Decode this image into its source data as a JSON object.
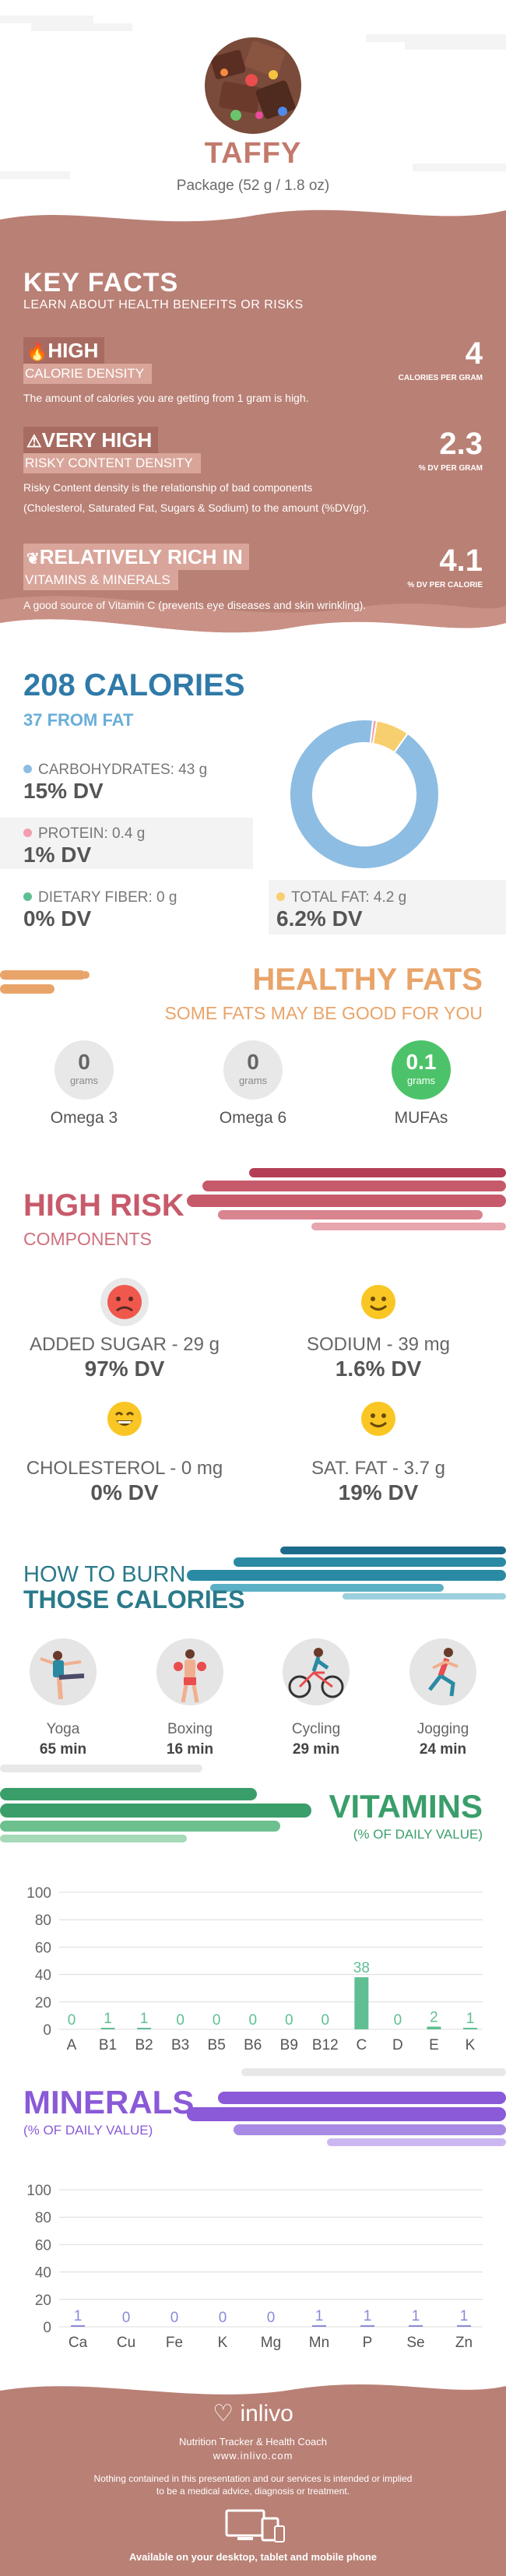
{
  "header": {
    "title": "TAFFY",
    "serving": "Package (52 g / 1.8 oz)"
  },
  "key_facts": {
    "title": "KEY FACTS",
    "subtitle": "LEARN ABOUT HEALTH BENEFITS OR RISKS",
    "facts": [
      {
        "icon": "flame-icon",
        "level": "HIGH",
        "label": "CALORIE DENSITY",
        "value": "4",
        "unit": "CALORIES PER GRAM",
        "description": "The amount of calories you are getting from 1 gram is high."
      },
      {
        "icon": "warning-icon",
        "level": "VERY HIGH",
        "label": "RISKY CONTENT DENSITY",
        "value": "2.3",
        "unit": "% DV PER GRAM",
        "description_line1": "Risky Content density is the relationship of bad components",
        "description_line2": "(Cholesterol, Saturated Fat, Sugars & Sodium) to the amount (%DV/gr)."
      },
      {
        "icon": "leaf-icon",
        "level": "RELATIVELY RICH  IN",
        "label": "VITAMINS & MINERALS",
        "value": "4.1",
        "unit": "% DV PER CALORIE",
        "description": "A good source of Vitamin C (prevents eye diseases and skin wrinkling)."
      }
    ]
  },
  "calories": {
    "title": "208 CALORIES",
    "from_fat": "37 FROM FAT",
    "nutrients": [
      {
        "label": "CARBOHYDRATES: 43 g",
        "dv": "15% DV",
        "color": "#8dbde3"
      },
      {
        "label": "PROTEIN: 0.4 g",
        "dv": "1% DV",
        "color": "#f29db0"
      },
      {
        "label": "DIETARY FIBER: 0 g",
        "dv": "0% DV",
        "color": "#5fbf92"
      },
      {
        "label": "TOTAL FAT: 4.2 g",
        "dv": "6.2% DV",
        "color": "#f7cf6e"
      }
    ],
    "donut": [
      {
        "name": "carbohydrates",
        "fraction": 0.92,
        "color": "#8dbde3"
      },
      {
        "name": "protein",
        "fraction": 0.008,
        "color": "#f29db0"
      },
      {
        "name": "total fat",
        "fraction": 0.072,
        "color": "#f7cf6e"
      }
    ]
  },
  "healthy_fats": {
    "title": "HEALTHY FATS",
    "subtitle": "SOME FATS MAY BE GOOD FOR YOU",
    "items": [
      {
        "name": "Omega 3",
        "value": "0",
        "unit": "grams"
      },
      {
        "name": "Omega 6",
        "value": "0",
        "unit": "grams"
      },
      {
        "name": "MUFAs",
        "value": "0.1",
        "unit": "grams"
      }
    ]
  },
  "high_risk": {
    "title": "HIGH RISK",
    "subtitle": "COMPONENTS",
    "items": [
      {
        "name": "ADDED SUGAR - 29 g",
        "dv": "97% DV",
        "face": "sad"
      },
      {
        "name": "SODIUM - 39 mg",
        "dv": "1.6% DV",
        "face": "smile"
      },
      {
        "name": "CHOLESTEROL - 0 mg",
        "dv": "0% DV",
        "face": "grin"
      },
      {
        "name": "SAT. FAT - 3.7 g",
        "dv": "19% DV",
        "face": "smile"
      }
    ]
  },
  "burn": {
    "title_line1": "HOW TO BURN",
    "title_line2": "THOSE CALORIES",
    "activities": [
      {
        "name": "Yoga",
        "time": "65 min",
        "icon": "yoga-icon"
      },
      {
        "name": "Boxing",
        "time": "16 min",
        "icon": "boxing-icon"
      },
      {
        "name": "Cycling",
        "time": "29 min",
        "icon": "cycling-icon"
      },
      {
        "name": "Jogging",
        "time": "24 min",
        "icon": "jogging-icon"
      }
    ]
  },
  "vitamins": {
    "title": "VITAMINS",
    "subtitle": "(% OF DAILY VALUE)"
  },
  "minerals": {
    "title": "MINERALS",
    "subtitle": "(% OF DAILY VALUE)"
  },
  "chart_data": [
    {
      "type": "bar",
      "categories": [
        "A",
        "B1",
        "B2",
        "B3",
        "B5",
        "B6",
        "B9",
        "B12",
        "C",
        "D",
        "E",
        "K"
      ],
      "values": [
        0,
        1,
        1,
        0,
        0,
        0,
        0,
        0,
        38,
        0,
        2,
        1
      ],
      "ylim": [
        0,
        100
      ],
      "yticks": [
        0,
        20,
        40,
        60,
        80,
        100
      ],
      "color": "#5fbf92",
      "grid": true
    },
    {
      "type": "bar",
      "categories": [
        "Ca",
        "Cu",
        "Fe",
        "K",
        "Mg",
        "Mn",
        "P",
        "Se",
        "Zn"
      ],
      "values": [
        1,
        0,
        0,
        0,
        0,
        1,
        1,
        1,
        1
      ],
      "ylim": [
        0,
        100
      ],
      "yticks": [
        0,
        20,
        40,
        60,
        80,
        100
      ],
      "color": "#8a8ad8",
      "grid": true
    }
  ],
  "footer": {
    "brand": "inlivo",
    "tagline": "Nutrition Tracker & Health Coach",
    "url": "www.inlivo.com",
    "disclaimer_line1": "Nothing contained in this presentation and our services is intended or implied",
    "disclaimer_line2": "to be a medical advice, diagnosis or treatment.",
    "devices": "Available on your desktop, tablet and mobile phone"
  },
  "colors": {
    "rose": "#b98075",
    "rose_dark": "#a86b61",
    "rose_light": "#d9a59a"
  }
}
